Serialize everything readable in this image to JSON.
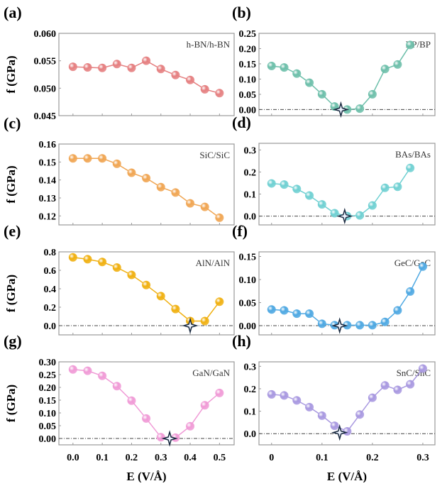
{
  "chart_data": [
    {
      "panel": "(a)",
      "type": "line",
      "label": "h-BN/h-BN",
      "color": "#e57f80",
      "ylabel": "f (GPa)",
      "ylim": [
        0.045,
        0.06
      ],
      "yticks": [
        "0.045",
        "0.050",
        "0.055",
        "0.060"
      ],
      "xlim": [
        -0.048,
        0.55
      ],
      "x": [
        0,
        0.05,
        0.1,
        0.15,
        0.2,
        0.25,
        0.3,
        0.35,
        0.4,
        0.45,
        0.5
      ],
      "values": [
        0.0539,
        0.0538,
        0.0537,
        0.0544,
        0.0537,
        0.055,
        0.0535,
        0.0524,
        0.0515,
        0.0498,
        0.0491
      ]
    },
    {
      "panel": "(b)",
      "type": "line",
      "label": "BP/BP",
      "color": "#6dbfaa",
      "ylim": [
        -0.02,
        0.25
      ],
      "yticks": [
        "0.00",
        "0.05",
        "0.10",
        "0.15",
        "0.20",
        "0.25"
      ],
      "xlim": [
        -0.025,
        0.324
      ],
      "x": [
        0,
        0.025,
        0.05,
        0.075,
        0.1,
        0.125,
        0.15,
        0.175,
        0.2,
        0.225,
        0.25,
        0.275
      ],
      "values": [
        0.143,
        0.138,
        0.118,
        0.088,
        0.05,
        0.01,
        0.0,
        0.003,
        0.05,
        0.133,
        0.148,
        0.212
      ],
      "zero_line": true,
      "star": [
        0.1375,
        0.0
      ]
    },
    {
      "panel": "(c)",
      "type": "line",
      "label": "SiC/SiC",
      "color": "#f0a552",
      "ylabel": "f (GPa)",
      "ylim": [
        0.115,
        0.16
      ],
      "yticks": [
        "0.12",
        "0.13",
        "0.14",
        "0.15",
        "0.16"
      ],
      "xlim": [
        -0.048,
        0.55
      ],
      "x": [
        0,
        0.05,
        0.1,
        0.15,
        0.2,
        0.25,
        0.3,
        0.35,
        0.4,
        0.45,
        0.5
      ],
      "values": [
        0.152,
        0.152,
        0.152,
        0.149,
        0.144,
        0.141,
        0.136,
        0.133,
        0.127,
        0.125,
        0.119
      ]
    },
    {
      "panel": "(d)",
      "type": "line",
      "label": "BAs/BAs",
      "color": "#6fd0d2",
      "ylim": [
        -0.04,
        0.33
      ],
      "yticks": [
        "0.0",
        "0.1",
        "0.2",
        "0.3"
      ],
      "xlim": [
        -0.025,
        0.324
      ],
      "x": [
        0,
        0.025,
        0.05,
        0.075,
        0.1,
        0.125,
        0.15,
        0.175,
        0.2,
        0.225,
        0.25,
        0.275
      ],
      "values": [
        0.148,
        0.143,
        0.123,
        0.093,
        0.053,
        0.013,
        0.0,
        0.003,
        0.048,
        0.128,
        0.133,
        0.218
      ],
      "zero_line": true,
      "star": [
        0.145,
        0.0
      ]
    },
    {
      "panel": "(e)",
      "type": "line",
      "label": "AlN/AlN",
      "color": "#f0b010",
      "ylabel": "f (GPa)",
      "ylim": [
        -0.1,
        0.8
      ],
      "yticks": [
        "0.0",
        "0.2",
        "0.4",
        "0.6",
        "0.8"
      ],
      "xlim": [
        -0.048,
        0.55
      ],
      "x": [
        0,
        0.05,
        0.1,
        0.15,
        0.2,
        0.25,
        0.3,
        0.35,
        0.4,
        0.45,
        0.5
      ],
      "values": [
        0.74,
        0.72,
        0.69,
        0.63,
        0.55,
        0.44,
        0.32,
        0.18,
        0.05,
        0.05,
        0.26
      ],
      "zero_line": true,
      "star": [
        0.4,
        0.0
      ]
    },
    {
      "panel": "(f)",
      "type": "line",
      "label": "GeC/GeC",
      "color": "#4ea8e2",
      "ylim": [
        -0.02,
        0.16
      ],
      "yticks": [
        "0.00",
        "0.05",
        "0.10",
        "0.15"
      ],
      "xlim": [
        -0.025,
        0.324
      ],
      "x": [
        0,
        0.025,
        0.05,
        0.075,
        0.1,
        0.125,
        0.15,
        0.175,
        0.2,
        0.225,
        0.25,
        0.275,
        0.3
      ],
      "values": [
        0.035,
        0.033,
        0.026,
        0.026,
        0.004,
        0.001,
        0.001,
        0.001,
        0.001,
        0.008,
        0.033,
        0.074,
        0.128
      ],
      "zero_line": true,
      "star": [
        0.135,
        0.0
      ]
    },
    {
      "panel": "(g)",
      "type": "line",
      "label": "GaN/GaN",
      "color": "#f09ad6",
      "ylabel": "f (GPa)",
      "ylim": [
        -0.025,
        0.3
      ],
      "yticks": [
        "0.00",
        "0.05",
        "0.10",
        "0.15",
        "0.20",
        "0.25",
        "0.30"
      ],
      "xlim": [
        -0.048,
        0.55
      ],
      "xticks": [
        "0.0",
        "0.1",
        "0.2",
        "0.3",
        "0.4",
        "0.5"
      ],
      "xlabel": "E (V/Å)",
      "x": [
        0,
        0.05,
        0.1,
        0.15,
        0.2,
        0.25,
        0.3,
        0.35,
        0.4,
        0.45,
        0.5
      ],
      "values": [
        0.27,
        0.265,
        0.245,
        0.205,
        0.148,
        0.078,
        0.005,
        0.003,
        0.048,
        0.13,
        0.178
      ],
      "zero_line": true,
      "star": [
        0.33,
        0.0
      ]
    },
    {
      "panel": "(h)",
      "type": "line",
      "label": "SnC/SnC",
      "color": "#a898e0",
      "ylim": [
        -0.05,
        0.32
      ],
      "yticks": [
        "0.0",
        "0.1",
        "0.2",
        "0.3"
      ],
      "xlim": [
        -0.025,
        0.324
      ],
      "xticks": [
        "0",
        "0.1",
        "0.2",
        "0.3"
      ],
      "xlabel": "E (V/Å)",
      "x": [
        0,
        0.025,
        0.05,
        0.075,
        0.1,
        0.125,
        0.15,
        0.175,
        0.2,
        0.225,
        0.25,
        0.275,
        0.3
      ],
      "values": [
        0.175,
        0.17,
        0.148,
        0.118,
        0.08,
        0.035,
        0.01,
        0.085,
        0.16,
        0.215,
        0.195,
        0.22,
        0.29
      ],
      "zero_line": true,
      "star": [
        0.135,
        0.005
      ]
    }
  ]
}
